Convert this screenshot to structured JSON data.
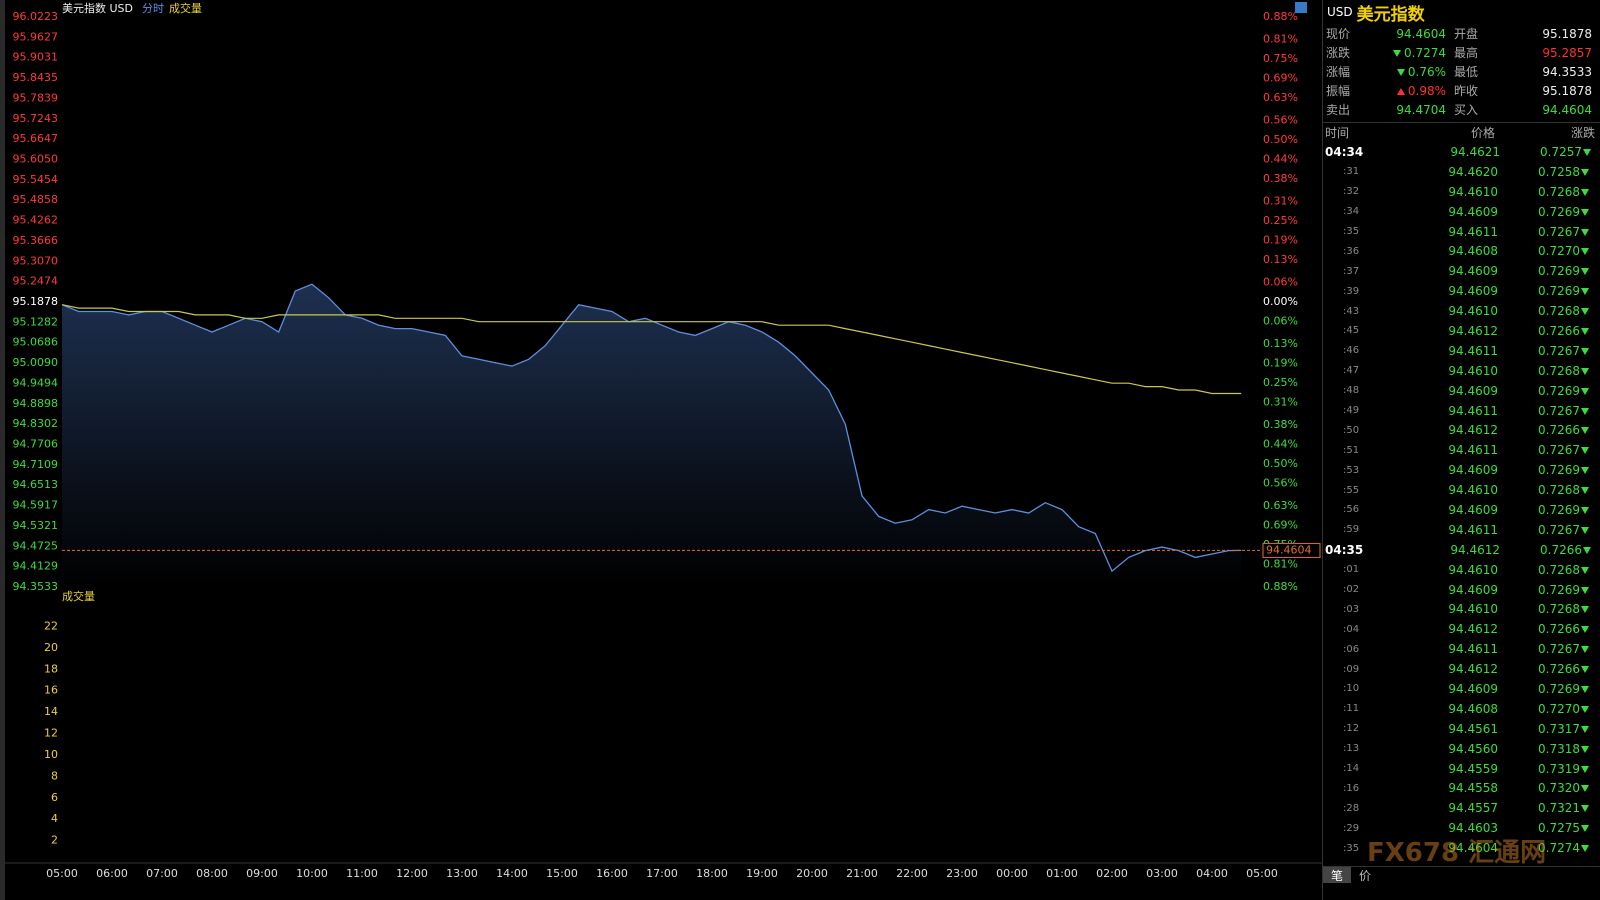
{
  "chart_data": [
    {
      "type": "line",
      "title": "美元指数 USD",
      "volume_label": "成交量",
      "x": [
        "05:00",
        "05:20",
        "05:40",
        "06:00",
        "06:20",
        "06:40",
        "07:00",
        "07:20",
        "07:40",
        "08:00",
        "08:20",
        "08:40",
        "09:00",
        "09:20",
        "09:40",
        "10:00",
        "10:20",
        "10:40",
        "11:00",
        "11:20",
        "11:40",
        "12:00",
        "12:20",
        "12:40",
        "13:00",
        "13:20",
        "13:40",
        "14:00",
        "14:20",
        "14:40",
        "15:00",
        "15:20",
        "15:40",
        "16:00",
        "16:20",
        "16:40",
        "17:00",
        "17:20",
        "17:40",
        "18:00",
        "18:20",
        "18:40",
        "19:00",
        "19:20",
        "19:40",
        "20:00",
        "20:20",
        "20:40",
        "21:00",
        "21:20",
        "21:40",
        "22:00",
        "22:20",
        "22:40",
        "23:00",
        "23:20",
        "23:40",
        "00:00",
        "00:20",
        "00:40",
        "01:00",
        "01:20",
        "01:40",
        "02:00",
        "02:20",
        "02:40",
        "03:00",
        "03:20",
        "03:40",
        "04:00",
        "04:20",
        "04:35"
      ],
      "series": [
        {
          "name": "分时",
          "color": "#5b8fe0",
          "values": [
            95.18,
            95.16,
            95.16,
            95.16,
            95.15,
            95.16,
            95.16,
            95.14,
            95.12,
            95.1,
            95.12,
            95.14,
            95.13,
            95.1,
            95.22,
            95.24,
            95.2,
            95.15,
            95.14,
            95.12,
            95.11,
            95.11,
            95.1,
            95.09,
            95.03,
            95.02,
            95.01,
            95.0,
            95.02,
            95.06,
            95.12,
            95.18,
            95.17,
            95.16,
            95.13,
            95.14,
            95.12,
            95.1,
            95.09,
            95.11,
            95.13,
            95.12,
            95.1,
            95.07,
            95.03,
            94.98,
            94.93,
            94.83,
            94.62,
            94.56,
            94.54,
            94.55,
            94.58,
            94.57,
            94.59,
            94.58,
            94.57,
            94.58,
            94.57,
            94.6,
            94.58,
            94.53,
            94.51,
            94.4,
            94.44,
            94.46,
            94.47,
            94.46,
            94.44,
            94.45,
            94.46,
            94.4604
          ]
        },
        {
          "color": "#c8c850",
          "values": [
            95.18,
            95.17,
            95.17,
            95.17,
            95.16,
            95.16,
            95.16,
            95.16,
            95.15,
            95.15,
            95.15,
            95.14,
            95.14,
            95.15,
            95.15,
            95.15,
            95.15,
            95.15,
            95.15,
            95.15,
            95.14,
            95.14,
            95.14,
            95.14,
            95.14,
            95.13,
            95.13,
            95.13,
            95.13,
            95.13,
            95.13,
            95.13,
            95.13,
            95.13,
            95.13,
            95.13,
            95.13,
            95.13,
            95.13,
            95.13,
            95.13,
            95.13,
            95.13,
            95.12,
            95.12,
            95.12,
            95.12,
            95.11,
            95.1,
            95.09,
            95.08,
            95.07,
            95.06,
            95.05,
            95.04,
            95.03,
            95.02,
            95.01,
            95.0,
            94.99,
            94.98,
            94.97,
            94.96,
            94.95,
            94.95,
            94.94,
            94.94,
            94.93,
            94.93,
            94.92,
            94.92,
            94.92
          ]
        }
      ],
      "ylim": [
        94.3533,
        96.0223
      ],
      "yticks": [
        96.0223,
        95.9627,
        95.9031,
        95.8435,
        95.7839,
        95.7243,
        95.6647,
        {
          "value": 95.605,
          "label": "95.6050"
        },
        95.5454,
        95.4858,
        95.4262,
        95.3666,
        {
          "value": 95.307,
          "label": "95.3070"
        },
        95.2474,
        95.1878,
        95.1282,
        95.0686,
        {
          "value": 95.009,
          "label": "95.0090"
        },
        94.9494,
        94.8898,
        94.8302,
        94.7706,
        94.7109,
        94.6513,
        94.5917,
        94.5321,
        94.4725,
        94.4129,
        94.3533
      ],
      "y2lim": [
        -0.88,
        0.88
      ],
      "y2ticks": [
        {
          "value": 0.88,
          "label": "0.88%"
        },
        {
          "value": 0.81,
          "label": "0.81%"
        },
        {
          "value": 0.75,
          "label": "0.75%"
        },
        {
          "value": 0.69,
          "label": "0.69%"
        },
        {
          "value": 0.63,
          "label": "0.63%"
        },
        {
          "value": 0.56,
          "label": "0.56%"
        },
        {
          "value": 0.5,
          "label": "0.50%"
        },
        {
          "value": 0.44,
          "label": "0.44%"
        },
        {
          "value": 0.38,
          "label": "0.38%"
        },
        {
          "value": 0.31,
          "label": "0.31%"
        },
        {
          "value": 0.25,
          "label": "0.25%"
        },
        {
          "value": 0.19,
          "label": "0.19%"
        },
        {
          "value": 0.13,
          "label": "0.13%"
        },
        {
          "value": 0.06,
          "label": "0.06%"
        },
        {
          "value": 0,
          "label": "0.00%"
        },
        {
          "value": -0.06,
          "label": "0.06%"
        },
        {
          "value": -0.13,
          "label": "0.13%"
        },
        {
          "value": -0.19,
          "label": "0.19%"
        },
        {
          "value": -0.25,
          "label": "0.25%"
        },
        {
          "value": -0.31,
          "label": "0.31%"
        },
        {
          "value": -0.38,
          "label": "0.38%"
        },
        {
          "value": -0.44,
          "label": "0.44%"
        },
        {
          "value": -0.5,
          "label": "0.50%"
        },
        {
          "value": -0.56,
          "label": "0.56%"
        },
        {
          "value": -0.63,
          "label": "0.63%"
        },
        {
          "value": -0.69,
          "label": "0.69%"
        },
        {
          "value": -0.75,
          "label": "0.75%"
        },
        {
          "value": -0.81,
          "label": "0.81%"
        },
        {
          "value": -0.88,
          "label": "0.88%"
        }
      ],
      "xticks": [
        "05:00",
        "06:00",
        "07:00",
        "08:00",
        "09:00",
        "10:00",
        "11:00",
        "12:00",
        "13:00",
        "14:00",
        "15:00",
        "16:00",
        "17:00",
        "18:00",
        "19:00",
        "20:00",
        "21:00",
        "22:00",
        "23:00",
        "00:00",
        "01:00",
        "02:00",
        "03:00",
        "04:00",
        "05:00"
      ]
    },
    {
      "type": "bar",
      "title": "成交量",
      "ylim": [
        0,
        24
      ],
      "yticks": [
        2,
        4,
        6,
        8,
        10,
        12,
        14,
        16,
        18,
        20,
        22
      ]
    }
  ],
  "quote": {
    "symbol": "USD",
    "name": "美元指数",
    "rows": [
      [
        "现价",
        "94.4604",
        "开盘",
        "95.1878"
      ],
      [
        "涨跌",
        "0.7274",
        "最高",
        "95.2857"
      ],
      [
        "涨幅",
        "0.76%",
        "最低",
        "94.3533"
      ],
      [
        "振幅",
        "0.98%",
        "昨收",
        "95.1878"
      ],
      [
        "卖出",
        "94.4704",
        "买入",
        "94.4604"
      ]
    ]
  },
  "ticks": {
    "columns": [
      "时间",
      "价格",
      "涨跌"
    ],
    "rows": [
      [
        "04:34",
        "94.4621",
        "0.7257"
      ],
      [
        ":31",
        "94.4620",
        "0.7258"
      ],
      [
        ":32",
        "94.4610",
        "0.7268"
      ],
      [
        ":34",
        "94.4609",
        "0.7269"
      ],
      [
        ":35",
        "94.4611",
        "0.7267"
      ],
      [
        ":36",
        "94.4608",
        "0.7270"
      ],
      [
        ":37",
        "94.4609",
        "0.7269"
      ],
      [
        ":39",
        "94.4609",
        "0.7269"
      ],
      [
        ":43",
        "94.4610",
        "0.7268"
      ],
      [
        ":45",
        "94.4612",
        "0.7266"
      ],
      [
        ":46",
        "94.4611",
        "0.7267"
      ],
      [
        ":47",
        "94.4610",
        "0.7268"
      ],
      [
        ":48",
        "94.4609",
        "0.7269"
      ],
      [
        ":49",
        "94.4611",
        "0.7267"
      ],
      [
        ":50",
        "94.4612",
        "0.7266"
      ],
      [
        ":51",
        "94.4611",
        "0.7267"
      ],
      [
        ":53",
        "94.4609",
        "0.7269"
      ],
      [
        ":55",
        "94.4610",
        "0.7268"
      ],
      [
        ":56",
        "94.4609",
        "0.7269"
      ],
      [
        ":59",
        "94.4611",
        "0.7267"
      ],
      [
        "04:35",
        "94.4612",
        "0.7266"
      ],
      [
        ":01",
        "94.4610",
        "0.7268"
      ],
      [
        ":02",
        "94.4609",
        "0.7269"
      ],
      [
        ":03",
        "94.4610",
        "0.7268"
      ],
      [
        ":04",
        "94.4612",
        "0.7266"
      ],
      [
        ":06",
        "94.4611",
        "0.7267"
      ],
      [
        ":09",
        "94.4612",
        "0.7266"
      ],
      [
        ":10",
        "94.4609",
        "0.7269"
      ],
      [
        ":11",
        "94.4608",
        "0.7270"
      ],
      [
        ":12",
        "94.4561",
        "0.7317"
      ],
      [
        ":13",
        "94.4560",
        "0.7318"
      ],
      [
        ":14",
        "94.4559",
        "0.7319"
      ],
      [
        ":16",
        "94.4558",
        "0.7320"
      ],
      [
        ":28",
        "94.4557",
        "0.7321"
      ],
      [
        ":29",
        "94.4603",
        "0.7275"
      ],
      [
        ":35",
        "94.4604",
        "0.7274"
      ]
    ]
  },
  "footer": {
    "tabs": [
      "笔",
      "价"
    ]
  },
  "watermark": "FX678 汇通网"
}
